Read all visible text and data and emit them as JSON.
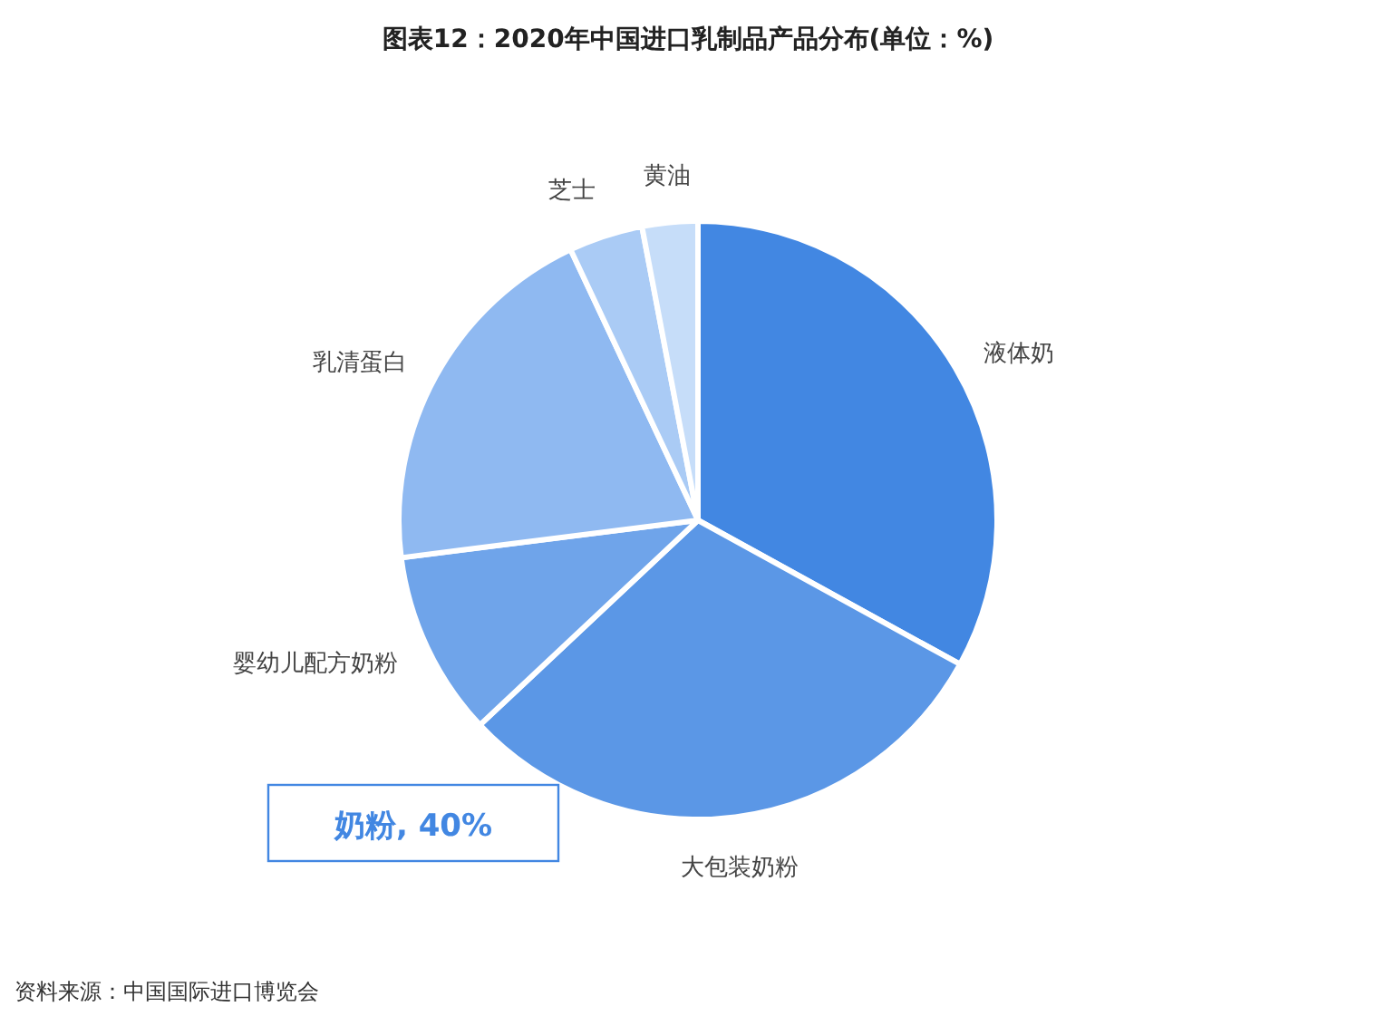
{
  "chart_data": {
    "type": "pie",
    "title": "图表12：2020年中国进口乳制品产品分布(单位：%)",
    "categories": [
      "液体奶",
      "大包装奶粉",
      "婴幼儿配方奶粉",
      "乳清蛋白",
      "芝士",
      "黄油"
    ],
    "values": [
      33,
      30,
      10,
      20,
      4,
      3
    ],
    "colors": [
      "#4287e2",
      "#5b97e6",
      "#6fa4ea",
      "#8fb9f1",
      "#aacbf5",
      "#c6ddf9"
    ],
    "annotations": [
      "奶粉, 40%",
      "资料来源：中国国际进口博览会"
    ]
  }
}
